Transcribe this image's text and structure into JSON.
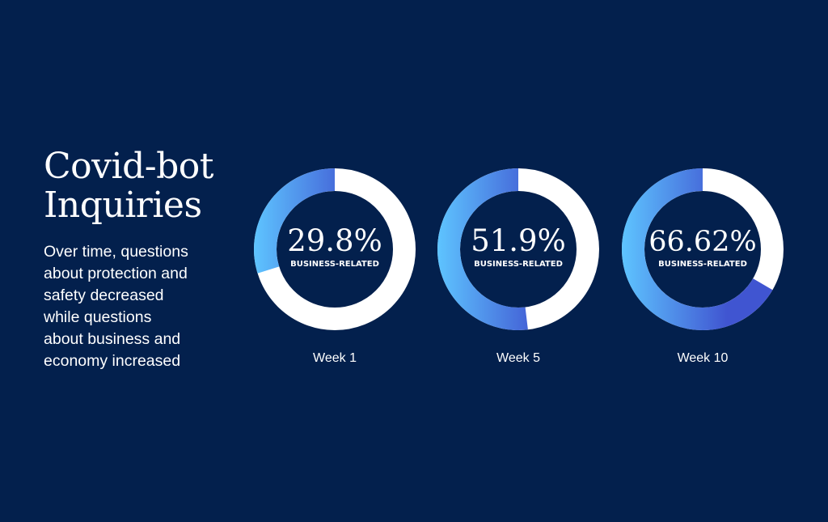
{
  "title": {
    "line1": "Covid-bot",
    "line2": "Inquiries"
  },
  "description": {
    "lines": [
      "Over time, questions",
      "about protection and",
      "safety decreased",
      "while questions",
      "about business and",
      "economy increased"
    ]
  },
  "colors": {
    "background": "#03204d",
    "remainder": "#ffffff",
    "gradient_light": "#5ec4ff",
    "gradient_dark": "#4055d1"
  },
  "chart_data": {
    "type": "pie",
    "variant": "donut",
    "unit": "%",
    "items": [
      {
        "label": "Week 1",
        "value": 29.8,
        "value_text": "29.8%",
        "sublabel": "BUSINESS-RELATED"
      },
      {
        "label": "Week 5",
        "value": 51.9,
        "value_text": "51.9%",
        "sublabel": "BUSINESS-RELATED"
      },
      {
        "label": "Week 10",
        "value": 66.62,
        "value_text": "66.62%",
        "sublabel": "BUSINESS-RELATED"
      }
    ]
  }
}
